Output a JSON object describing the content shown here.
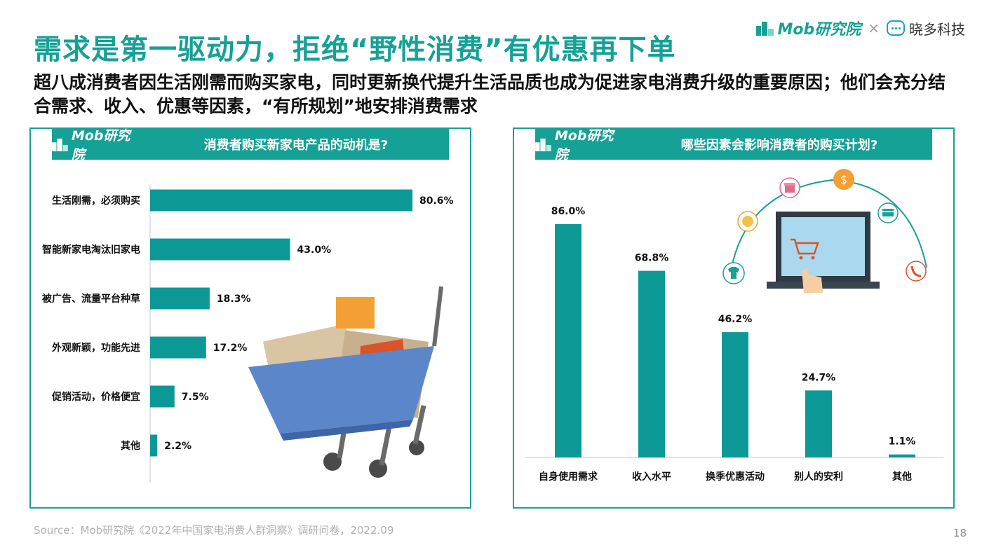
{
  "header": {
    "title": "需求是第一驱动力，拒绝“野性消费”有优惠再下单",
    "subtitle": "超八成消费者因生活刚需而购买家电，同时更新换代提升生活品质也成为促进家电消费升级的重要原因；他们会充分结合需求、收入、优惠等因素，“有所规划”地安排消费需求"
  },
  "brand": {
    "mob": "Mob研究院",
    "separator": "×",
    "partner": "晓多科技"
  },
  "panels": {
    "left": {
      "logo": "Mob研究院",
      "question": "消费者购买新家电产品的动机是?"
    },
    "right": {
      "logo": "Mob研究院",
      "question": "哪些因素会影响消费者的购买计划?"
    }
  },
  "chart_data": [
    {
      "type": "bar",
      "orientation": "horizontal",
      "categories": [
        "生活刚需，必须购买",
        "智能新家电淘汰旧家电",
        "被广告、流量平台种草",
        "外观新颖，功能先进",
        "促销活动，价格便宜",
        "其他"
      ],
      "values": [
        80.6,
        43.0,
        18.3,
        17.2,
        7.5,
        2.2
      ],
      "value_labels": [
        "80.6%",
        "43.0%",
        "18.3%",
        "17.2%",
        "7.5%",
        "2.2%"
      ],
      "color": "#0c9996"
    },
    {
      "type": "bar",
      "orientation": "vertical",
      "categories": [
        "自身使用需求",
        "收入水平",
        "换季优惠活动",
        "别人的安利",
        "其他"
      ],
      "values": [
        86.0,
        68.8,
        46.2,
        24.7,
        1.1
      ],
      "value_labels": [
        "86.0%",
        "68.8%",
        "46.2%",
        "24.7%",
        "1.1%"
      ],
      "color": "#0c9996"
    }
  ],
  "footer": {
    "source": "Source：Mob研究院《2022年中国家电消费人群洞察》调研问卷，2022.09",
    "page": "18"
  },
  "colors": {
    "accent": "#16a196",
    "bar": "#0c9996",
    "cart": "#5b86c9"
  },
  "icons": [
    "mob-logo-icon",
    "xiaoduo-logo-icon",
    "shopping-cart-icon",
    "laptop-shopping-icon",
    "gift-icon",
    "coin-icon",
    "card-icon",
    "phone-icon",
    "tshirt-icon"
  ]
}
